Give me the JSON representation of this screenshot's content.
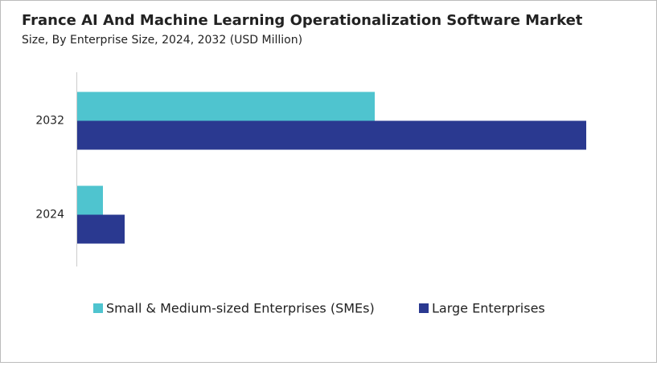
{
  "chart_data": {
    "type": "hbar",
    "title": "France AI And Machine Learning Operationalization Software Market",
    "subtitle": "Size, By Enterprise Size, 2024, 2032 (USD Million)",
    "categories": [
      "2032",
      "2024"
    ],
    "series": [
      {
        "name": "Small & Medium-sized Enterprises (SMEs)",
        "color": "#4fc4cf",
        "values": [
          370,
          32
        ]
      },
      {
        "name": "Large Enterprises",
        "color": "#2a3990",
        "values": [
          633,
          59
        ]
      }
    ],
    "xlim": [
      0,
      700
    ]
  }
}
